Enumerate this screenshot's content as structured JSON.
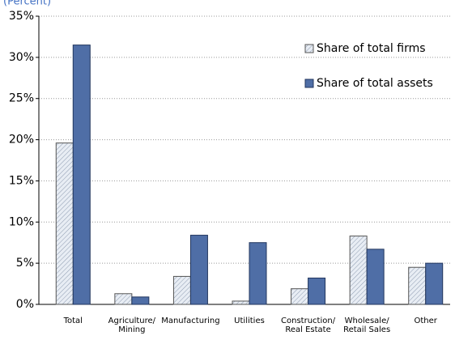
{
  "chart_data": {
    "type": "bar",
    "subtitle": "(Percent)",
    "categories": [
      "Total",
      "Agriculture/ Mining",
      "Manufacturing",
      "Utilities",
      "Construction/ Real Estate",
      "Wholesale/ Retail Sales",
      "Other"
    ],
    "series": [
      {
        "name": "Share of total firms",
        "color": "#dfe6f0",
        "values": [
          19.6,
          1.3,
          3.4,
          0.4,
          1.9,
          8.3,
          4.5
        ]
      },
      {
        "name": "Share of total assets",
        "color": "#4f6ea6",
        "values": [
          31.5,
          0.9,
          8.4,
          7.5,
          3.2,
          6.7,
          5.0
        ]
      }
    ],
    "ylim": [
      0,
      35
    ],
    "yticks": [
      {
        "value": 0,
        "label": "0%"
      },
      {
        "value": 5,
        "label": "5%"
      },
      {
        "value": 10,
        "label": "10%"
      },
      {
        "value": 15,
        "label": "15%"
      },
      {
        "value": 20,
        "label": "20%"
      },
      {
        "value": 25,
        "label": "25%"
      },
      {
        "value": 30,
        "label": "30%"
      },
      {
        "value": 35,
        "label": "35%"
      }
    ],
    "grid": true,
    "legend": "upper right"
  }
}
